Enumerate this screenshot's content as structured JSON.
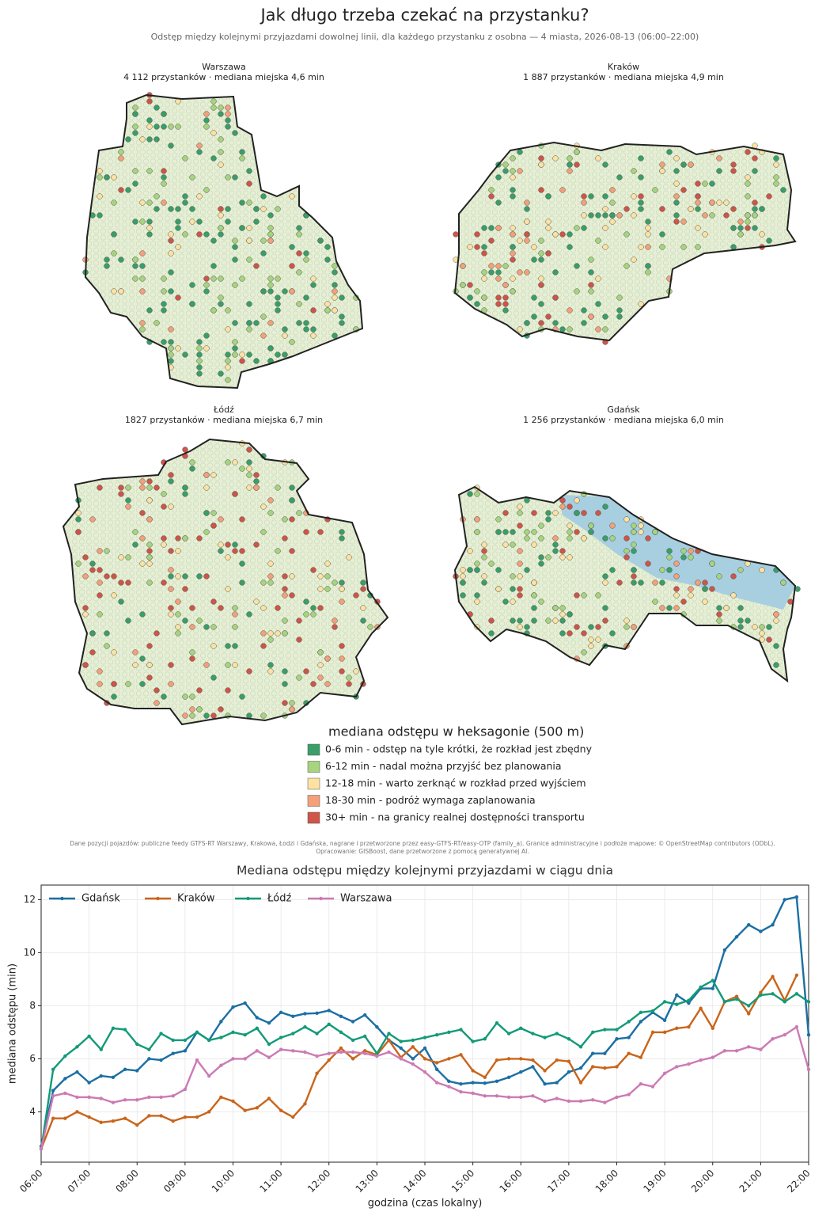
{
  "header": {
    "title": "Jak długo trzeba czekać na przystanku?",
    "subtitle": "Odstęp między kolejnymi przyjazdami dowolnej linii, dla każdego przystanku z osobna — 4 miasta, 2026-08-13 (06:00–22:00)"
  },
  "maps": [
    {
      "title": "Warszawa",
      "subtitle": "4 112 przystanków · mediana miejska 4,6 min"
    },
    {
      "title": "Kraków",
      "subtitle": "1 887 przystanków · mediana miejska 4,9 min"
    },
    {
      "title": "Łódź",
      "subtitle": "1827 przystanków · mediana miejska 6,7 min"
    },
    {
      "title": "Gdańsk",
      "subtitle": "1 256 przystanków · mediana miejska 6,0 min"
    }
  ],
  "legend": {
    "title": "mediana odstępu w heksagonie (500 m)",
    "items": [
      {
        "label": "0-6 min - odstęp na tyle krótki, że rozkład jest zbędny",
        "color": "#3a9e68"
      },
      {
        "label": "6-12 min - nadal można przyjść bez planowania",
        "color": "#a6d47f"
      },
      {
        "label": "12-18 min - warto zerknąć w rozkład przed wyjściem",
        "color": "#fde2a3"
      },
      {
        "label": "18-30 min - podróż wymaga zaplanowania",
        "color": "#f4a07a"
      },
      {
        "label": "30+ min - na granicy realnej dostępności transportu",
        "color": "#cf5548"
      }
    ]
  },
  "credits": [
    "Dane pozycji pojazdów: publiczne feedy GTFS-RT Warszawy, Krakowa, Łodzi i Gdańska, nagrane i przetworzone przez easy-GTFS-RT/easy-OTP (family_a). Granice administracyjne i podłoże mapowe: © OpenStreetMap contributors (ODbL).",
    "Opracowanie: GISBoost, dane przetworzone z pomocą generatywnej AI."
  ],
  "chart_data": {
    "type": "line",
    "title": "Mediana odstępu między kolejnymi przyjazdami w ciągu dnia",
    "x_label": "godzina (czas lokalny)",
    "y_label": "mediana odstępu (min)",
    "grid": true,
    "legend": "upper left",
    "x": [
      6,
      6.25,
      6.5,
      6.75,
      7,
      7.25,
      7.5,
      7.75,
      8,
      8.25,
      8.5,
      8.75,
      9,
      9.25,
      9.5,
      9.75,
      10,
      10.25,
      10.5,
      10.75,
      11,
      11.25,
      11.5,
      11.75,
      12,
      12.25,
      12.5,
      12.75,
      13,
      13.25,
      13.5,
      13.75,
      14,
      14.25,
      14.5,
      14.75,
      15,
      15.25,
      15.5,
      15.75,
      16,
      16.25,
      16.5,
      16.75,
      17,
      17.25,
      17.5,
      17.75,
      18,
      18.25,
      18.5,
      18.75,
      19,
      19.25,
      19.5,
      19.75,
      20,
      20.25,
      20.5,
      20.75,
      21,
      21.25,
      21.5,
      21.75,
      22
    ],
    "xlim": [
      6,
      22
    ],
    "xticks": [
      {
        "value": 6,
        "label": "06:00"
      },
      {
        "value": 7,
        "label": "07:00"
      },
      {
        "value": 8,
        "label": "08:00"
      },
      {
        "value": 9,
        "label": "09:00"
      },
      {
        "value": 10,
        "label": "10:00"
      },
      {
        "value": 11,
        "label": "11:00"
      },
      {
        "value": 12,
        "label": "12:00"
      },
      {
        "value": 13,
        "label": "13:00"
      },
      {
        "value": 14,
        "label": "14:00"
      },
      {
        "value": 15,
        "label": "15:00"
      },
      {
        "value": 16,
        "label": "16:00"
      },
      {
        "value": 17,
        "label": "17:00"
      },
      {
        "value": 18,
        "label": "18:00"
      },
      {
        "value": 19,
        "label": "19:00"
      },
      {
        "value": 20,
        "label": "20:00"
      },
      {
        "value": 21,
        "label": "21:00"
      },
      {
        "value": 22,
        "label": "22:00"
      }
    ],
    "ylim": [
      2.1,
      12.55
    ],
    "yticks": [
      4,
      6,
      8,
      10,
      12
    ],
    "series": [
      {
        "name": "Gdańsk",
        "color": "#1b6fa3",
        "values": [
          2.7,
          4.8,
          5.25,
          5.5,
          5.1,
          5.35,
          5.3,
          5.6,
          5.55,
          6.0,
          5.95,
          6.2,
          6.3,
          7.0,
          6.7,
          7.4,
          7.95,
          8.1,
          7.55,
          7.35,
          7.75,
          7.6,
          7.7,
          7.72,
          7.82,
          7.6,
          7.4,
          7.65,
          7.2,
          6.7,
          6.4,
          6.0,
          6.4,
          5.6,
          5.15,
          5.05,
          5.1,
          5.08,
          5.15,
          5.3,
          5.5,
          5.7,
          5.05,
          5.1,
          5.5,
          5.65,
          6.2,
          6.2,
          6.75,
          6.8,
          7.4,
          7.75,
          7.45,
          8.4,
          8.1,
          8.65,
          8.65,
          10.1,
          10.6,
          11.05,
          10.8,
          11.05,
          12.0,
          12.1,
          6.9
        ]
      },
      {
        "name": "Kraków",
        "color": "#c9651b",
        "values": [
          2.6,
          3.75,
          3.75,
          4.0,
          3.8,
          3.6,
          3.65,
          3.75,
          3.5,
          3.85,
          3.85,
          3.65,
          3.8,
          3.8,
          4.0,
          4.55,
          4.4,
          4.05,
          4.15,
          4.5,
          4.05,
          3.8,
          4.3,
          5.45,
          5.95,
          6.4,
          6.0,
          6.3,
          6.15,
          6.7,
          6.05,
          6.45,
          6.0,
          5.85,
          6.0,
          6.15,
          5.55,
          5.3,
          5.95,
          6.0,
          6.0,
          5.95,
          5.55,
          5.95,
          5.9,
          5.1,
          5.7,
          5.65,
          5.7,
          6.2,
          6.05,
          7.0,
          7.0,
          7.15,
          7.2,
          7.9,
          7.15,
          8.15,
          8.35,
          7.7,
          8.5,
          9.1,
          8.2,
          9.15,
          null
        ]
      },
      {
        "name": "Łódź",
        "color": "#139a78",
        "values": [
          2.6,
          5.6,
          6.1,
          6.45,
          6.85,
          6.35,
          7.15,
          7.1,
          6.55,
          6.35,
          6.95,
          6.7,
          6.7,
          7.0,
          6.7,
          6.8,
          7.0,
          6.9,
          7.15,
          6.55,
          6.8,
          6.95,
          7.2,
          6.95,
          7.3,
          7.0,
          6.7,
          6.85,
          6.2,
          6.95,
          6.65,
          6.7,
          6.8,
          6.9,
          7.0,
          7.1,
          6.65,
          6.75,
          7.35,
          6.95,
          7.15,
          6.95,
          6.8,
          6.95,
          6.75,
          6.45,
          7.0,
          7.1,
          7.1,
          7.4,
          7.75,
          7.8,
          8.15,
          8.05,
          8.2,
          8.7,
          8.95,
          8.15,
          8.25,
          8.0,
          8.4,
          8.45,
          8.15,
          8.45,
          8.15
        ]
      },
      {
        "name": "Warszawa",
        "color": "#cc7ab4",
        "values": [
          2.6,
          4.6,
          4.7,
          4.55,
          4.55,
          4.5,
          4.35,
          4.45,
          4.45,
          4.55,
          4.55,
          4.6,
          4.85,
          5.95,
          5.35,
          5.75,
          6.0,
          6.0,
          6.3,
          6.05,
          6.35,
          6.3,
          6.25,
          6.1,
          6.2,
          6.25,
          6.25,
          6.2,
          6.1,
          6.25,
          6.0,
          5.8,
          5.5,
          5.1,
          4.95,
          4.75,
          4.7,
          4.6,
          4.6,
          4.55,
          4.55,
          4.6,
          4.4,
          4.5,
          4.4,
          4.4,
          4.45,
          4.35,
          4.55,
          4.65,
          5.05,
          4.95,
          5.45,
          5.7,
          5.8,
          5.95,
          6.05,
          6.3,
          6.3,
          6.45,
          6.35,
          6.75,
          6.9,
          7.2,
          5.6
        ]
      }
    ]
  }
}
